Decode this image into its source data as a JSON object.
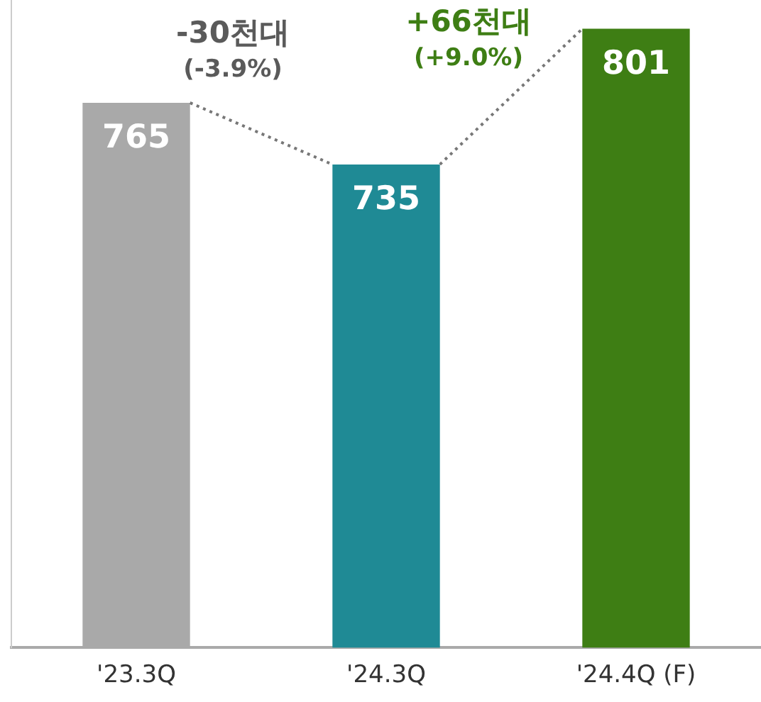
{
  "chart_data": {
    "type": "bar",
    "categories": [
      "'23.3Q",
      "'24.3Q",
      "'24.4Q (F)"
    ],
    "values": [
      765,
      735,
      801
    ],
    "colors": [
      "#a9a9a9",
      "#1f8a95",
      "#3e7e14"
    ],
    "ylim": [
      500,
      815
    ],
    "tick_labels": "x",
    "grid": false,
    "legend": false,
    "data_labels": true,
    "annotations": [
      "-30천대\n(-3.9%)",
      "+66천대\n(+9.0%)"
    ]
  }
}
